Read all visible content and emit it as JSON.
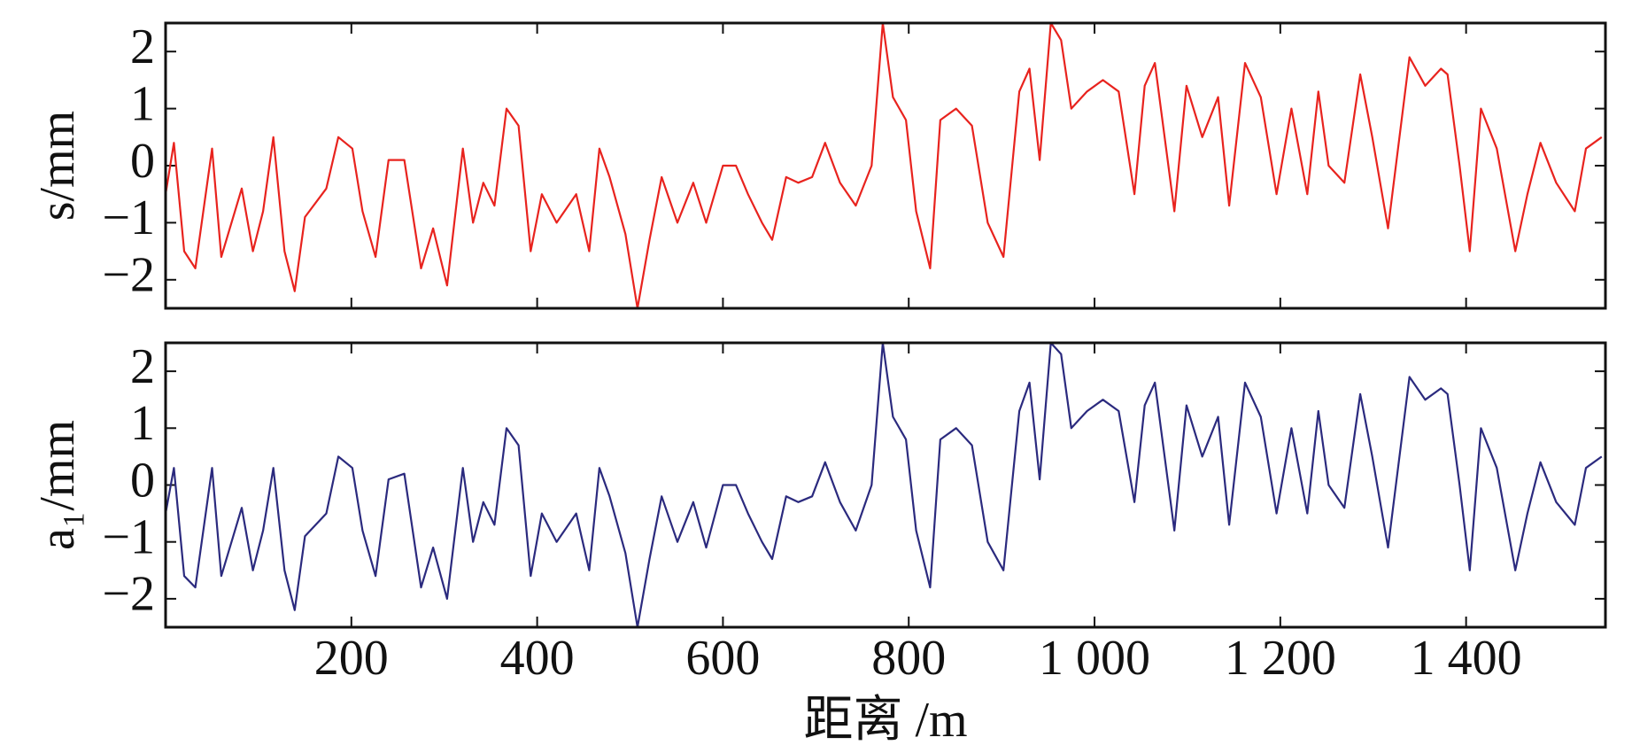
{
  "chart_data": [
    {
      "type": "line",
      "y_label": "s/mm",
      "color": "#e8231e",
      "x": [
        0,
        9,
        20,
        32,
        50,
        60,
        82,
        94,
        105,
        116,
        128,
        139,
        150,
        173,
        186,
        201,
        212,
        226,
        240,
        257,
        275,
        288,
        303,
        320,
        331,
        342,
        354,
        367,
        380,
        393,
        405,
        421,
        442,
        456,
        467,
        478,
        495,
        508,
        521,
        534,
        551,
        568,
        582,
        600,
        614,
        627,
        642,
        653,
        668,
        681,
        696,
        710,
        726,
        743,
        760,
        772,
        783,
        797,
        808,
        823,
        834,
        851,
        868,
        885,
        902,
        919,
        930,
        941,
        953,
        964,
        975,
        992,
        1009,
        1026,
        1043,
        1054,
        1065,
        1086,
        1099,
        1116,
        1133,
        1145,
        1162,
        1179,
        1196,
        1212,
        1229,
        1241,
        1252,
        1269,
        1286,
        1299,
        1316,
        1339,
        1356,
        1373,
        1380,
        1393,
        1404,
        1416,
        1433,
        1453,
        1466,
        1480,
        1497,
        1517,
        1529,
        1546
      ],
      "values": [
        -0.5,
        0.4,
        -1.5,
        -1.8,
        0.3,
        -1.6,
        -0.4,
        -1.5,
        -0.8,
        0.5,
        -1.5,
        -2.2,
        -0.9,
        -0.4,
        0.5,
        0.3,
        -0.8,
        -1.6,
        0.1,
        0.1,
        -1.8,
        -1.1,
        -2.1,
        0.3,
        -1.0,
        -0.3,
        -0.7,
        1.0,
        0.7,
        -1.5,
        -0.5,
        -1.0,
        -0.5,
        -1.5,
        0.3,
        -0.2,
        -1.2,
        -2.5,
        -1.3,
        -0.2,
        -1.0,
        -0.3,
        -1.0,
        0.0,
        0.0,
        -0.5,
        -1.0,
        -1.3,
        -0.2,
        -0.3,
        -0.2,
        0.4,
        -0.3,
        -0.7,
        0.0,
        2.5,
        1.2,
        0.8,
        -0.8,
        -1.8,
        0.8,
        1.0,
        0.7,
        -1.0,
        -1.6,
        1.3,
        1.7,
        0.1,
        2.5,
        2.2,
        1.0,
        1.3,
        1.5,
        1.3,
        -0.5,
        1.4,
        1.8,
        -0.8,
        1.4,
        0.5,
        1.2,
        -0.7,
        1.8,
        1.2,
        -0.5,
        1.0,
        -0.5,
        1.3,
        0.0,
        -0.3,
        1.6,
        0.5,
        -1.1,
        1.9,
        1.4,
        1.7,
        1.6,
        0.0,
        -1.5,
        1.0,
        0.3,
        -1.5,
        -0.5,
        0.4,
        -0.3,
        -0.8,
        0.3,
        0.5
      ],
      "xlim": [
        0,
        1550
      ],
      "ylim": [
        -2.5,
        2.5
      ],
      "yticks": [
        {
          "value": -2,
          "label": "−2"
        },
        {
          "value": -1,
          "label": "−1"
        },
        0,
        1,
        2
      ]
    },
    {
      "type": "line",
      "y_label": "a₁/mm",
      "x_label": "距离 /m",
      "color": "#2b2a7e",
      "x": [
        0,
        9,
        20,
        32,
        50,
        60,
        82,
        94,
        105,
        116,
        128,
        139,
        150,
        173,
        186,
        201,
        212,
        226,
        240,
        257,
        275,
        288,
        303,
        320,
        331,
        342,
        354,
        367,
        380,
        393,
        405,
        421,
        442,
        456,
        467,
        478,
        495,
        508,
        521,
        534,
        551,
        568,
        582,
        600,
        614,
        627,
        642,
        653,
        668,
        681,
        696,
        710,
        726,
        743,
        760,
        772,
        783,
        797,
        808,
        823,
        834,
        851,
        868,
        885,
        902,
        919,
        930,
        941,
        953,
        964,
        975,
        992,
        1009,
        1026,
        1043,
        1054,
        1065,
        1086,
        1099,
        1116,
        1133,
        1145,
        1162,
        1179,
        1196,
        1212,
        1229,
        1241,
        1252,
        1269,
        1286,
        1299,
        1316,
        1339,
        1356,
        1373,
        1380,
        1393,
        1404,
        1416,
        1433,
        1453,
        1466,
        1480,
        1497,
        1517,
        1529,
        1546
      ],
      "values": [
        -0.5,
        0.3,
        -1.6,
        -1.8,
        0.3,
        -1.6,
        -0.4,
        -1.5,
        -0.8,
        0.3,
        -1.5,
        -2.2,
        -0.9,
        -0.5,
        0.5,
        0.3,
        -0.8,
        -1.6,
        0.1,
        0.2,
        -1.8,
        -1.1,
        -2.0,
        0.3,
        -1.0,
        -0.3,
        -0.7,
        1.0,
        0.7,
        -1.6,
        -0.5,
        -1.0,
        -0.5,
        -1.5,
        0.3,
        -0.2,
        -1.2,
        -2.5,
        -1.3,
        -0.2,
        -1.0,
        -0.3,
        -1.1,
        0.0,
        0.0,
        -0.5,
        -1.0,
        -1.3,
        -0.2,
        -0.3,
        -0.2,
        0.4,
        -0.3,
        -0.8,
        0.0,
        2.5,
        1.2,
        0.8,
        -0.8,
        -1.8,
        0.8,
        1.0,
        0.7,
        -1.0,
        -1.5,
        1.3,
        1.8,
        0.1,
        2.5,
        2.3,
        1.0,
        1.3,
        1.5,
        1.3,
        -0.3,
        1.4,
        1.8,
        -0.8,
        1.4,
        0.5,
        1.2,
        -0.7,
        1.8,
        1.2,
        -0.5,
        1.0,
        -0.5,
        1.3,
        0.0,
        -0.4,
        1.6,
        0.5,
        -1.1,
        1.9,
        1.5,
        1.7,
        1.6,
        0.0,
        -1.5,
        1.0,
        0.3,
        -1.5,
        -0.5,
        0.4,
        -0.3,
        -0.7,
        0.3,
        0.5
      ],
      "xlim": [
        0,
        1550
      ],
      "ylim": [
        -2.5,
        2.5
      ],
      "yticks": [
        {
          "value": -2,
          "label": "−2"
        },
        {
          "value": -1,
          "label": "−1"
        },
        0,
        1,
        2
      ],
      "xticks": [
        200,
        400,
        600,
        800,
        {
          "value": 1000,
          "label": "1 000"
        },
        {
          "value": 1200,
          "label": "1 200"
        },
        {
          "value": 1400,
          "label": "1 400"
        }
      ]
    }
  ]
}
